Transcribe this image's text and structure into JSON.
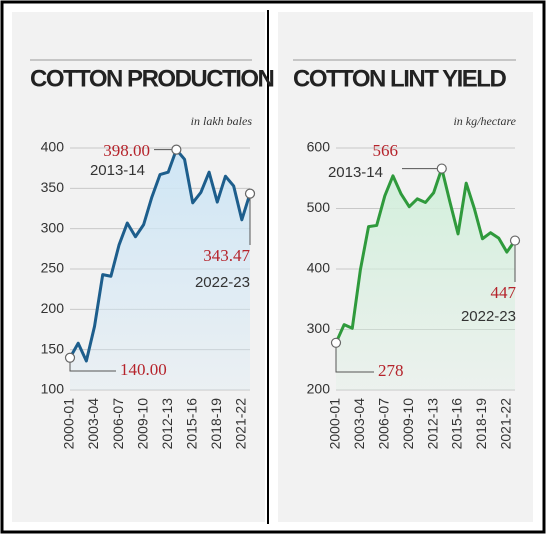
{
  "chart_data": [
    {
      "type": "area-line",
      "title": "COTTON PRODUCTION",
      "subtitle": "in lakh bales",
      "categories": [
        "2000-01",
        null,
        null,
        "2003-04",
        null,
        null,
        "2006-07",
        null,
        null,
        "2009-10",
        null,
        null,
        "2012-13",
        null,
        null,
        "2015-16",
        null,
        null,
        "2018-19",
        null,
        null,
        "2021-22",
        null
      ],
      "values": [
        140,
        158,
        136,
        179,
        243,
        241,
        280,
        307,
        290,
        305,
        339,
        367,
        370,
        398,
        386,
        332,
        345,
        370,
        333,
        365,
        353,
        311,
        343.47
      ],
      "value_labels": [
        "140.00",
        null,
        null,
        null,
        null,
        null,
        null,
        null,
        null,
        null,
        null,
        null,
        null,
        "398.00",
        null,
        null,
        null,
        null,
        null,
        null,
        null,
        null,
        "343.47"
      ],
      "annotations": [
        {
          "index": 13,
          "period": "2013-14"
        },
        {
          "index": 22,
          "period": "2022-23"
        },
        {
          "index": 0
        }
      ],
      "color": "#1d5e8c",
      "fill": "#cfe6f5",
      "ylim": [
        100,
        400
      ],
      "yticks": [
        100,
        150,
        200,
        250,
        300,
        350,
        400
      ],
      "grid": true
    },
    {
      "type": "area-line",
      "title": "COTTON LINT YIELD",
      "subtitle": "in kg/hectare",
      "categories": [
        "2000-01",
        null,
        null,
        "2003-04",
        null,
        null,
        "2006-07",
        null,
        null,
        "2009-10",
        null,
        null,
        "2012-13",
        null,
        null,
        "2015-16",
        null,
        null,
        "2018-19",
        null,
        null,
        "2021-22",
        null
      ],
      "values": [
        278,
        308,
        302,
        399,
        470,
        472,
        521,
        554,
        524,
        503,
        516,
        510,
        526,
        566,
        511,
        458,
        542,
        500,
        450,
        460,
        451,
        428,
        447
      ],
      "annotations": [
        {
          "index": 13,
          "period": "2013-14"
        },
        {
          "index": 22,
          "period": "2022-23"
        },
        {
          "index": 0
        }
      ],
      "color": "#2f9a3c",
      "fill": "#d3efdc",
      "ylim": [
        200,
        600
      ],
      "yticks": [
        200,
        300,
        400,
        500,
        600
      ],
      "grid": true
    }
  ]
}
